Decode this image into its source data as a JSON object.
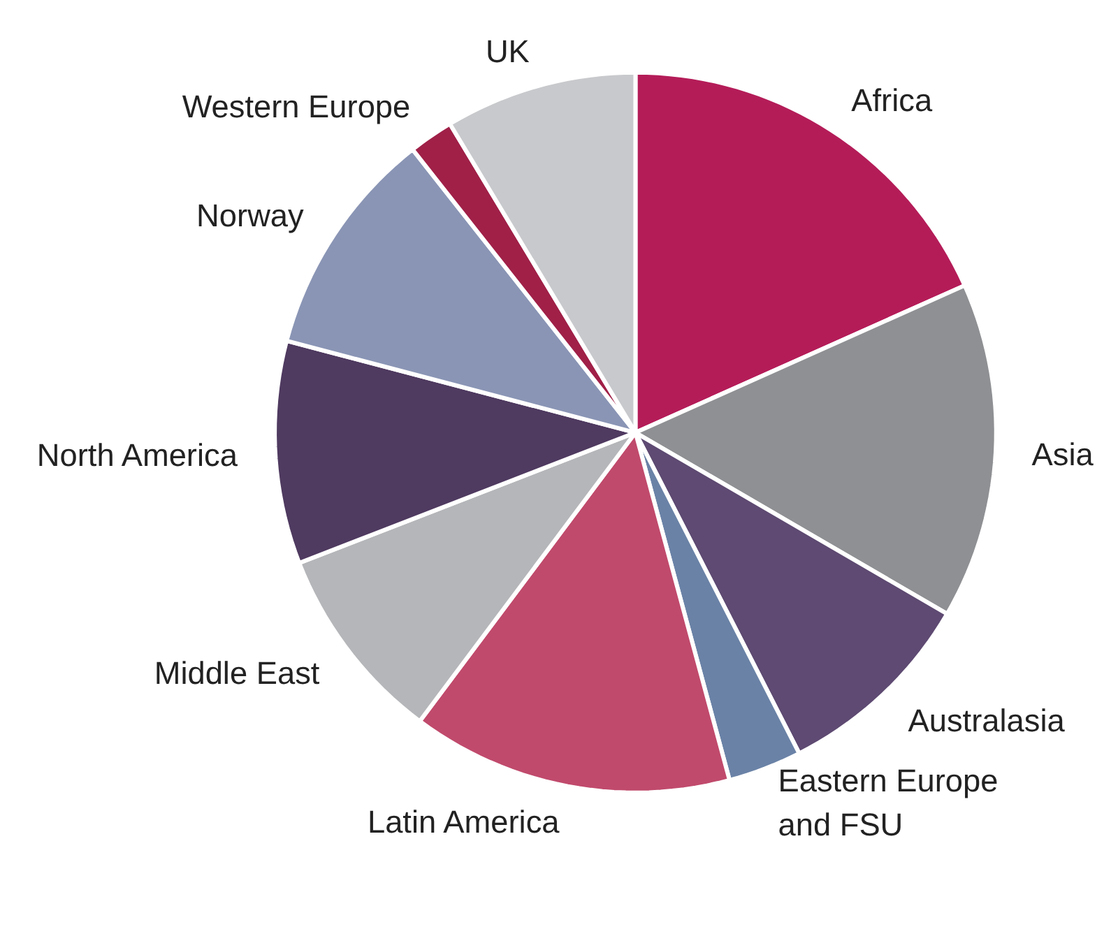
{
  "chart_data": {
    "type": "pie",
    "categories": [
      "Africa",
      "Asia",
      "Australasia",
      "Eastern Europe and FSU",
      "Latin America",
      "Middle East",
      "North America",
      "Norway",
      "Western Europe",
      "UK"
    ],
    "values": [
      18.3,
      15.1,
      9.1,
      3.3,
      14.4,
      8.9,
      10.0,
      10.3,
      2.0,
      8.6
    ],
    "colors": [
      "#b41c58",
      "#8f9093",
      "#5e4a72",
      "#6a82a6",
      "#c04a6c",
      "#b5b6b9",
      "#4f3a60",
      "#8a95b5",
      "#a02048",
      "#c8c9cc"
    ],
    "legend": false
  }
}
